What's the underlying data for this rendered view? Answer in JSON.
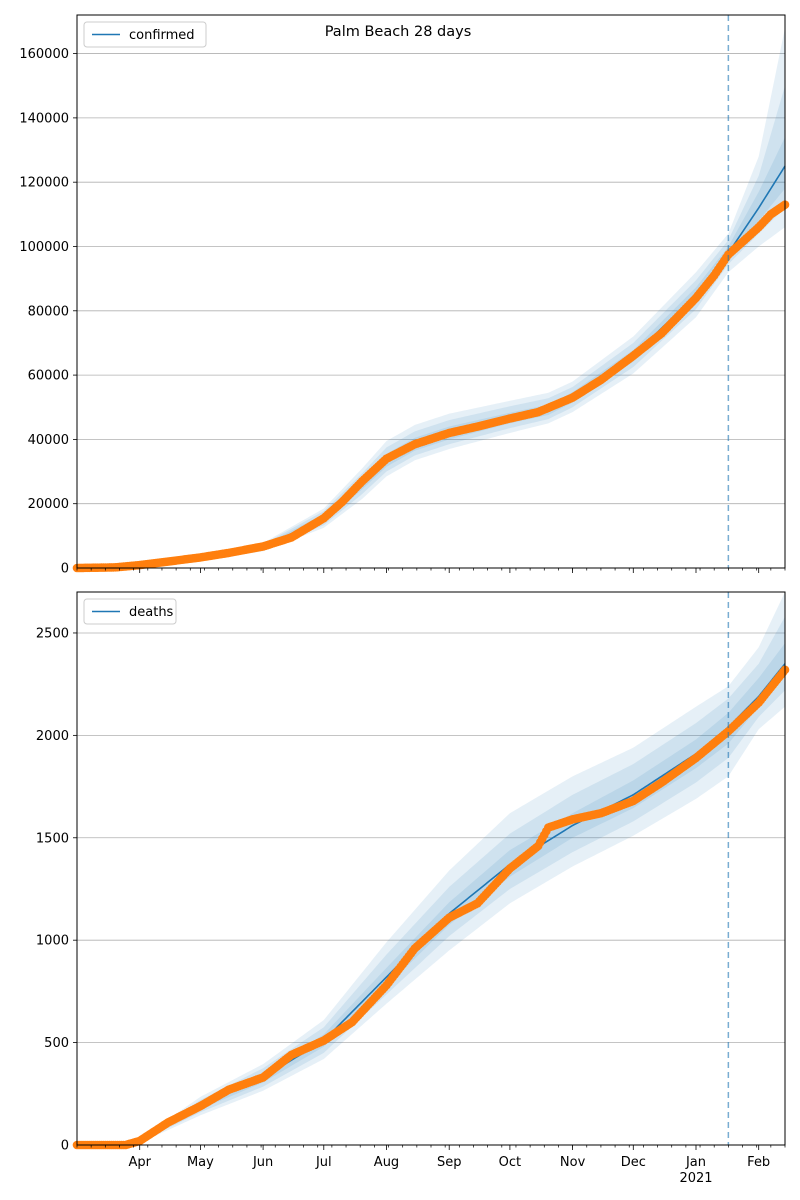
{
  "title": "Palm Beach 28 days",
  "colors": {
    "model": "#1f77b4",
    "observed": "#ff7f0e",
    "band": "#1f77b4",
    "grid": "#b0b0b0",
    "axis": "#000000"
  },
  "x_axis": {
    "start": "2020-03-01",
    "end": "2021-02-14",
    "month_labels": [
      {
        "date": "2020-04-01",
        "label": "Apr"
      },
      {
        "date": "2020-05-01",
        "label": "May"
      },
      {
        "date": "2020-06-01",
        "label": "Jun"
      },
      {
        "date": "2020-07-01",
        "label": "Jul"
      },
      {
        "date": "2020-08-01",
        "label": "Aug"
      },
      {
        "date": "2020-09-01",
        "label": "Sep"
      },
      {
        "date": "2020-10-01",
        "label": "Oct"
      },
      {
        "date": "2020-11-01",
        "label": "Nov"
      },
      {
        "date": "2020-12-01",
        "label": "Dec"
      },
      {
        "date": "2021-01-01",
        "label": "Jan"
      },
      {
        "date": "2021-02-01",
        "label": "Feb"
      }
    ],
    "year_label": {
      "date": "2021-01-01",
      "label": "2021"
    },
    "forecast_start": "2021-01-17"
  },
  "chart_data": [
    {
      "type": "line",
      "legend": "confirmed",
      "legend_position": "top-left",
      "grid": "y",
      "ylim": [
        0,
        172000
      ],
      "yticks": [
        0,
        20000,
        40000,
        60000,
        80000,
        100000,
        120000,
        140000,
        160000
      ],
      "model": {
        "x": [
          "2020-03-01",
          "2020-04-01",
          "2020-05-01",
          "2020-06-01",
          "2020-07-01",
          "2020-07-20",
          "2020-08-01",
          "2020-08-15",
          "2020-09-01",
          "2020-10-01",
          "2020-10-20",
          "2020-11-01",
          "2020-12-01",
          "2021-01-01",
          "2021-01-17",
          "2021-02-01",
          "2021-02-14"
        ],
        "y": [
          0,
          800,
          3000,
          6500,
          15500,
          26000,
          33500,
          38500,
          42000,
          46500,
          49000,
          53000,
          66000,
          85000,
          98000,
          112000,
          125000
        ],
        "bands": [
          {
            "lower": [
              0,
              600,
              2300,
              5200,
              12500,
              21500,
              28500,
              33500,
              37000,
              42000,
              45000,
              48500,
              60500,
              78000,
              92000,
              100000,
              106000
            ],
            "upper": [
              0,
              1000,
              3700,
              7800,
              18500,
              31000,
              39500,
              44500,
              48000,
              52000,
              54500,
              58000,
              72000,
              92000,
              104000,
              128000,
              168000
            ]
          },
          {
            "lower": [
              0,
              650,
              2500,
              5600,
              13300,
              23000,
              30000,
              35000,
              38500,
              43500,
              46300,
              50000,
              62500,
              80500,
              94500,
              104000,
              112000
            ],
            "upper": [
              0,
              950,
              3500,
              7400,
              17700,
              29500,
              37500,
              42500,
              46000,
              50300,
              52800,
              56300,
              70000,
              89500,
              102000,
              122000,
              150000
            ]
          },
          {
            "lower": [
              0,
              700,
              2700,
              6000,
              14200,
              24500,
              31500,
              36500,
              40000,
              45000,
              47600,
              51500,
              64200,
              82700,
              96200,
              108000,
              118000
            ],
            "upper": [
              0,
              900,
              3300,
              7000,
              16800,
              27700,
              35500,
              40500,
              44000,
              48300,
              50800,
              54700,
              67800,
              87300,
              100000,
              117000,
              134000
            ]
          }
        ]
      },
      "observed": {
        "x": [
          "2020-03-01",
          "2020-03-20",
          "2020-04-01",
          "2020-04-15",
          "2020-05-01",
          "2020-05-15",
          "2020-06-01",
          "2020-06-15",
          "2020-07-01",
          "2020-07-10",
          "2020-07-20",
          "2020-08-01",
          "2020-08-15",
          "2020-09-01",
          "2020-09-15",
          "2020-10-01",
          "2020-10-15",
          "2020-11-01",
          "2020-11-15",
          "2020-12-01",
          "2020-12-15",
          "2021-01-01",
          "2021-01-10",
          "2021-01-17",
          "2021-01-25",
          "2021-02-01",
          "2021-02-07",
          "2021-02-14"
        ],
        "y": [
          0,
          200,
          900,
          2000,
          3300,
          4700,
          6700,
          9500,
          15500,
          20500,
          27000,
          34000,
          38500,
          42000,
          44000,
          46500,
          48500,
          53000,
          58500,
          66000,
          73000,
          84000,
          91000,
          97500,
          102000,
          106000,
          110000,
          113000
        ]
      }
    },
    {
      "type": "line",
      "legend": "deaths",
      "legend_position": "top-left",
      "grid": "y",
      "ylim": [
        0,
        2700
      ],
      "yticks": [
        0,
        500,
        1000,
        1500,
        2000,
        2500
      ],
      "model": {
        "x": [
          "2020-03-01",
          "2020-03-25",
          "2020-04-01",
          "2020-05-01",
          "2020-06-01",
          "2020-07-01",
          "2020-08-01",
          "2020-09-01",
          "2020-10-01",
          "2020-11-01",
          "2020-12-01",
          "2021-01-01",
          "2021-01-17",
          "2021-02-01",
          "2021-02-14"
        ],
        "y": [
          0,
          0,
          20,
          190,
          330,
          510,
          820,
          1130,
          1370,
          1560,
          1710,
          1910,
          2040,
          2190,
          2350
        ],
        "bands": [
          {
            "lower": [
              0,
              0,
              10,
              145,
              265,
              420,
              690,
              950,
              1180,
              1360,
              1510,
              1690,
              1800,
              2030,
              2140
            ],
            "upper": [
              0,
              0,
              30,
              235,
              395,
              610,
              990,
              1340,
              1620,
              1800,
              1940,
              2140,
              2240,
              2430,
              2700
            ]
          },
          {
            "lower": [
              0,
              0,
              14,
              160,
              285,
              450,
              735,
              1020,
              1250,
              1430,
              1580,
              1770,
              1890,
              2090,
              2220
            ],
            "upper": [
              0,
              0,
              26,
              220,
              375,
              575,
              930,
              1260,
              1520,
              1710,
              1860,
              2060,
              2180,
              2350,
              2580
            ]
          },
          {
            "lower": [
              0,
              0,
              17,
              175,
              305,
              480,
              775,
              1075,
              1310,
              1500,
              1645,
              1840,
              1960,
              2140,
              2290
            ],
            "upper": [
              0,
              0,
              23,
              205,
              355,
              540,
              865,
              1185,
              1440,
              1620,
              1780,
              1980,
              2110,
              2280,
              2450
            ]
          }
        ]
      },
      "observed": {
        "x": [
          "2020-03-01",
          "2020-03-25",
          "2020-04-01",
          "2020-04-15",
          "2020-05-01",
          "2020-05-15",
          "2020-06-01",
          "2020-06-15",
          "2020-07-01",
          "2020-07-15",
          "2020-08-01",
          "2020-08-15",
          "2020-09-01",
          "2020-09-15",
          "2020-10-01",
          "2020-10-15",
          "2020-10-20",
          "2020-11-01",
          "2020-11-15",
          "2020-12-01",
          "2020-12-15",
          "2021-01-01",
          "2021-01-17",
          "2021-02-01",
          "2021-02-14"
        ],
        "y": [
          0,
          0,
          20,
          110,
          190,
          270,
          330,
          440,
          510,
          600,
          780,
          960,
          1110,
          1180,
          1350,
          1460,
          1550,
          1590,
          1620,
          1680,
          1770,
          1890,
          2020,
          2160,
          2320
        ]
      }
    }
  ]
}
